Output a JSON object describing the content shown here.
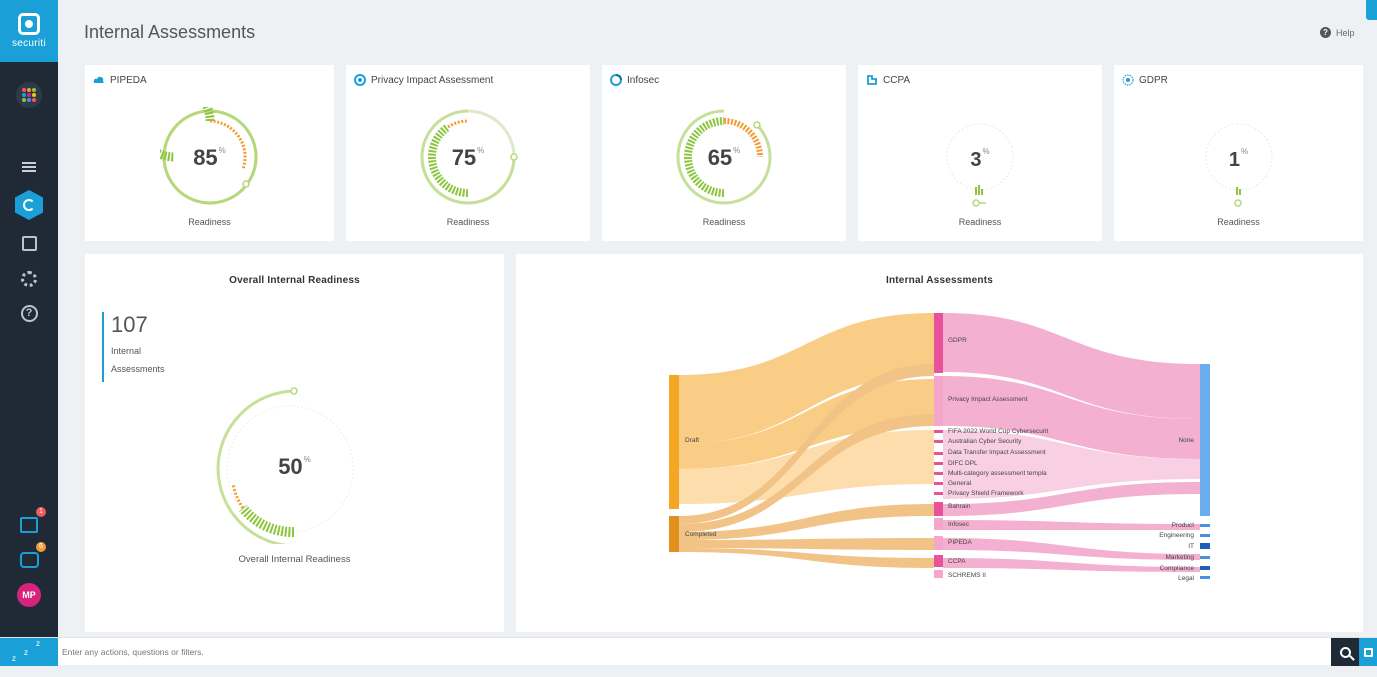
{
  "app": {
    "brand": "securiti",
    "title": "Internal Assessments",
    "help_label": "Help"
  },
  "sidebar": {
    "gift_badge": "1",
    "chat_badge": "6",
    "avatar_initials": "MP"
  },
  "cards": [
    {
      "name": "PIPEDA",
      "value": 85,
      "unit": "%",
      "label": "Readiness"
    },
    {
      "name": "Privacy Impact Assessment",
      "value": 75,
      "unit": "%",
      "label": "Readiness"
    },
    {
      "name": "Infosec",
      "value": 65,
      "unit": "%",
      "label": "Readiness"
    },
    {
      "name": "CCPA",
      "value": 3,
      "unit": "%",
      "label": "Readiness"
    },
    {
      "name": "GDPR",
      "value": 1,
      "unit": "%",
      "label": "Readiness"
    }
  ],
  "overall": {
    "title": "Overall Internal Readiness",
    "count": "107",
    "count_label": "Internal Assessments",
    "value": 50,
    "unit": "%",
    "gauge_label": "Overall Internal Readiness"
  },
  "sankey": {
    "title": "Internal Assessments",
    "sources": [
      "Draft",
      "Completed"
    ],
    "middle": [
      "GDPR",
      "Privacy Impact Assessment",
      "FIFA 2022 World Cup Cybersecurit",
      "Australian Cyber Security",
      "Data Transfer Impact Assessment",
      "DIFC DPL",
      "Multi-category assessment templa",
      "General",
      "Privacy Shield Framework",
      "Bahrain",
      "Infosec",
      "PIPEDA",
      "CCPA",
      "SCHREMS II"
    ],
    "targets": [
      "None",
      "Product",
      "Engineering",
      "IT",
      "Marketing",
      "Compliance",
      "Legal"
    ]
  },
  "cmdbar": {
    "placeholder": "Enter any actions, questions or filters.",
    "z1": "z",
    "z2": "z",
    "z3": "z"
  },
  "colors": {
    "accent": "#1aa0d7",
    "gauge_green": "#8cc63f",
    "gauge_orange": "#f39c35",
    "sankey_orange": "#f5a623",
    "sankey_pink": "#e8529a",
    "sankey_blue": "#4a90e2"
  }
}
